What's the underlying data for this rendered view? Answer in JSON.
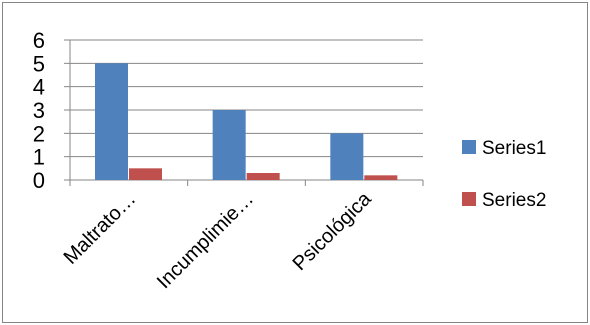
{
  "chart_data": {
    "type": "bar",
    "categories": [
      "Maltrato…",
      "Incumplimie…",
      "Psicológica"
    ],
    "series": [
      {
        "name": "Series1",
        "values": [
          5,
          3,
          2
        ],
        "color": "#4F81BD"
      },
      {
        "name": "Series2",
        "values": [
          0.5,
          0.3,
          0.2
        ],
        "color": "#C0504D"
      }
    ],
    "ylim": [
      0,
      6
    ],
    "yticks": [
      "0",
      "1",
      "2",
      "3",
      "4",
      "5",
      "6"
    ],
    "grid": true,
    "legend": "right",
    "title": "",
    "xlabel": "",
    "ylabel": ""
  }
}
